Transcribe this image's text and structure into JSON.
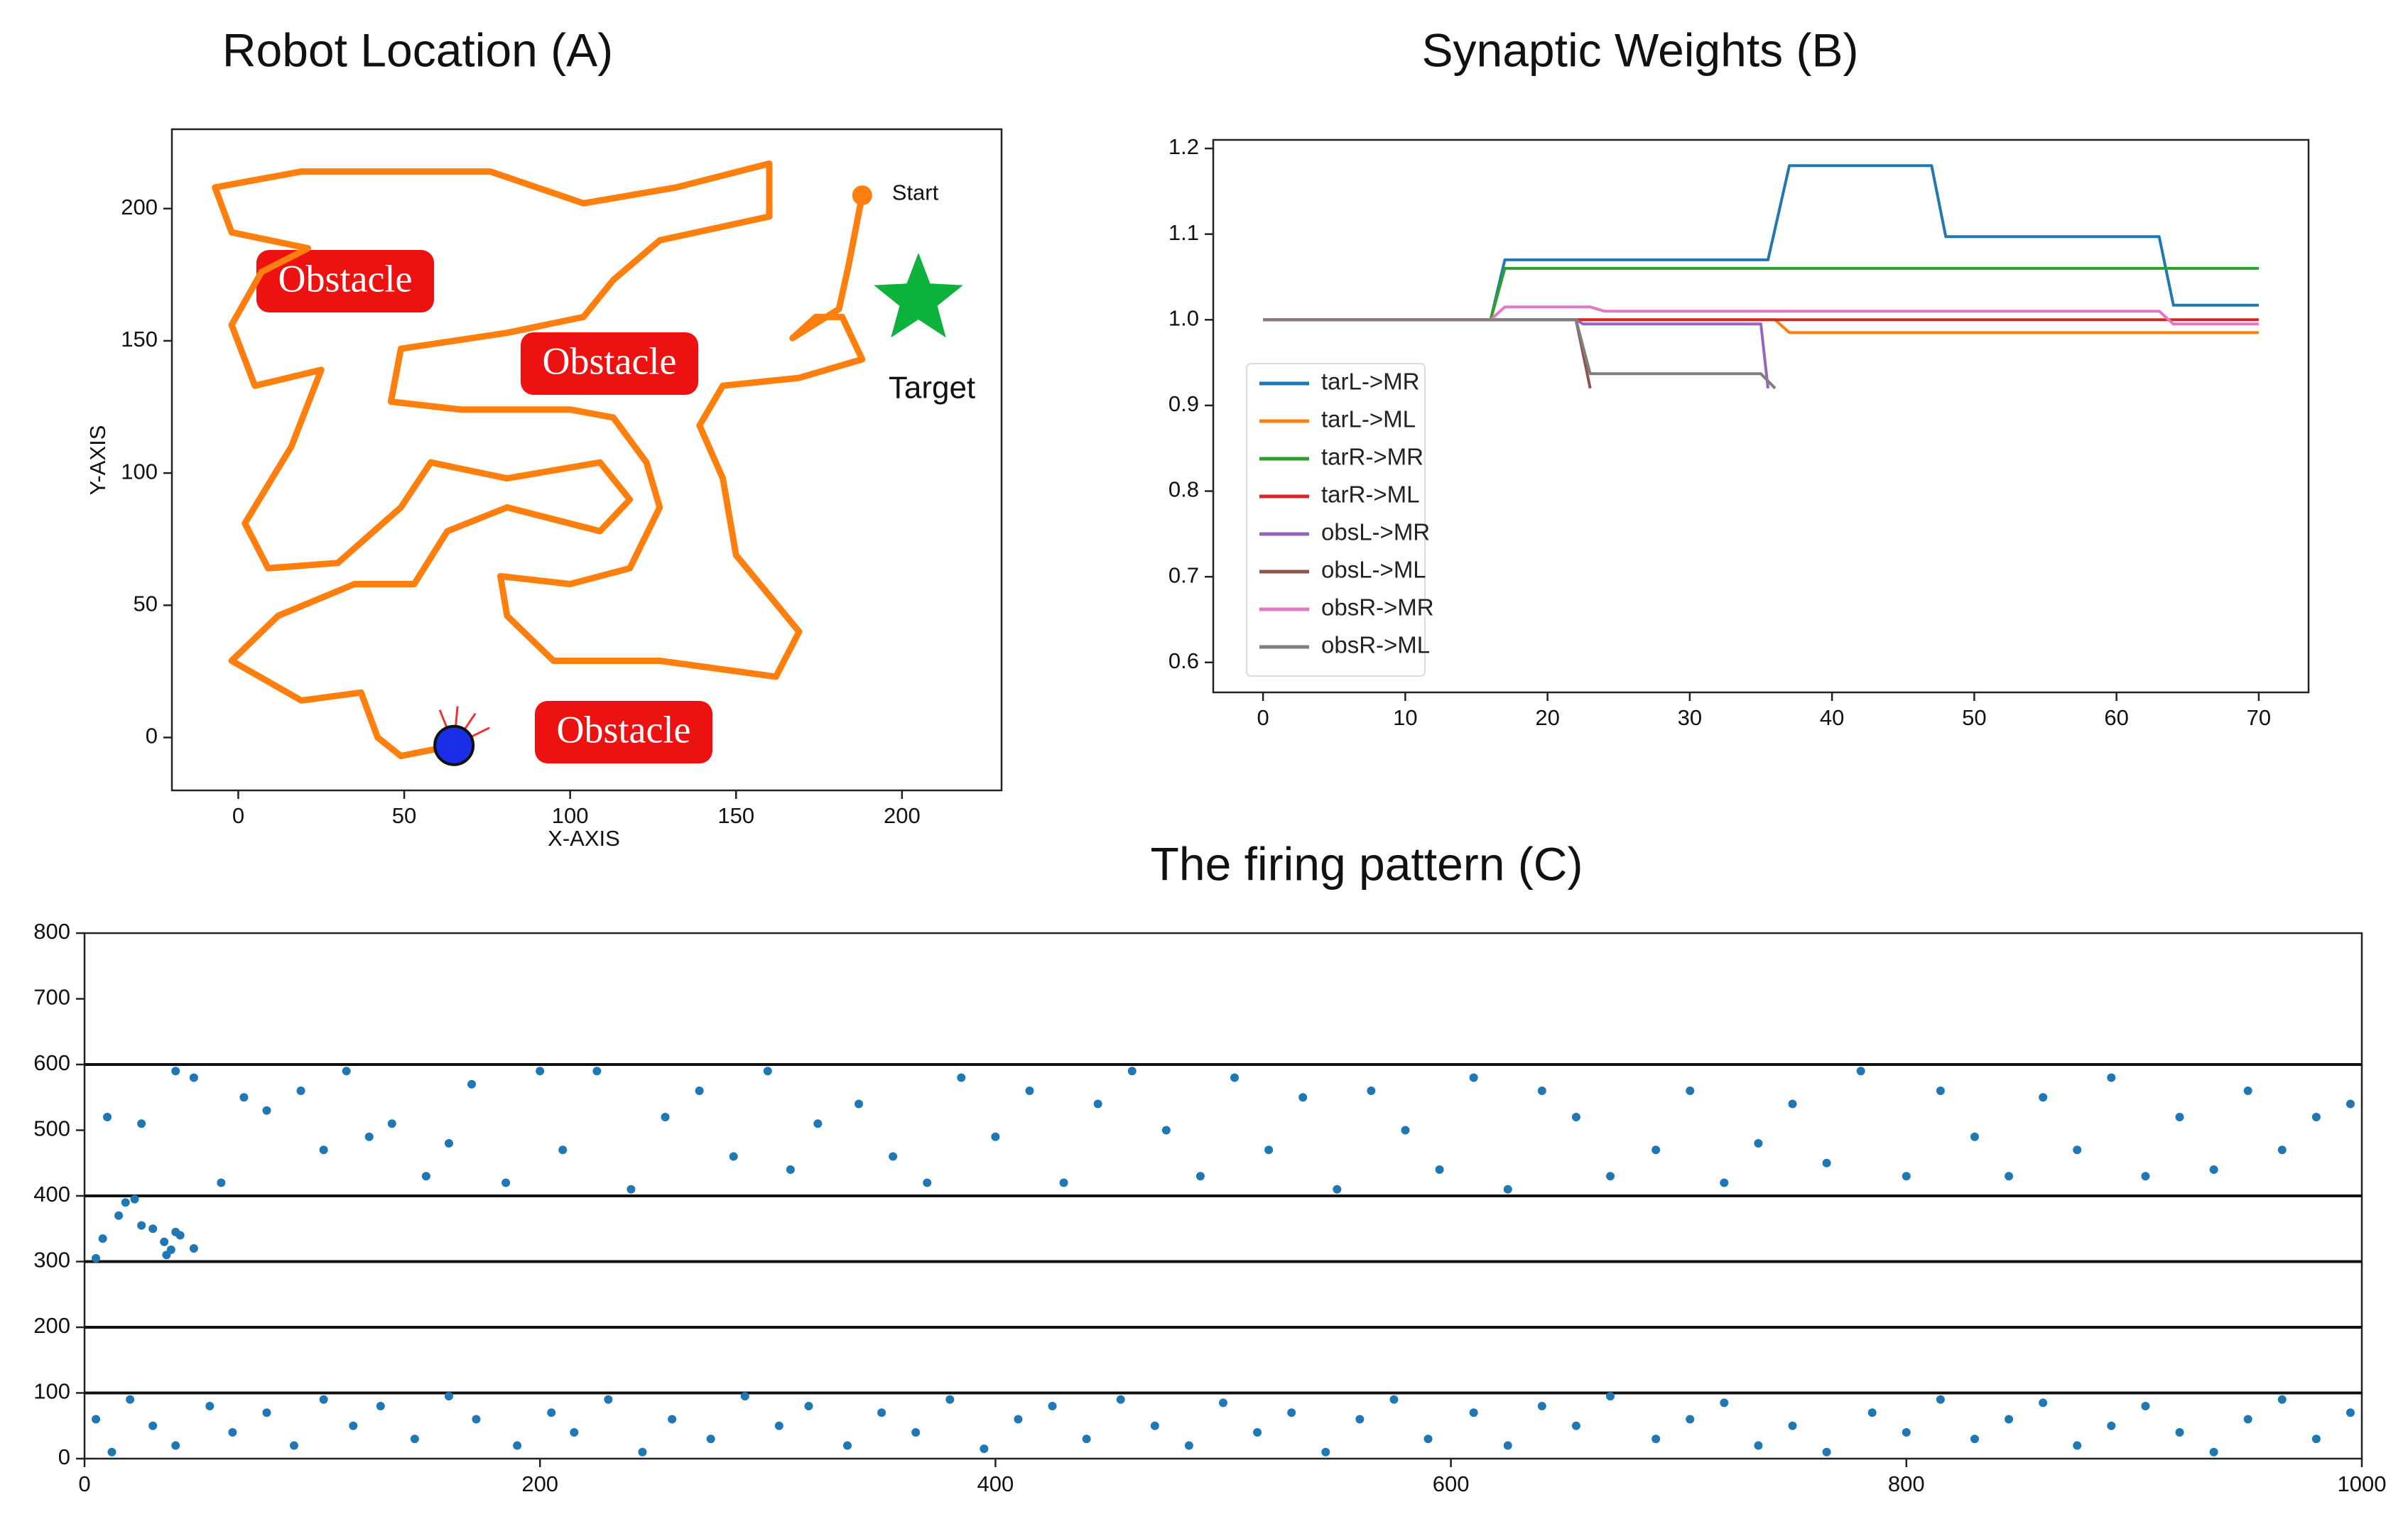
{
  "chart_data": [
    {
      "type": "line",
      "title": "Robot Location (A)",
      "x_label": "X-AXIS",
      "y_label": "Y-AXIS",
      "start_label": "Start",
      "target_label": "Target",
      "obstacles": [
        "Obstacle",
        "Obstacle",
        "Obstacle"
      ],
      "color": "#ff7f0e",
      "x": [
        188,
        184,
        181,
        167,
        174,
        182,
        188,
        169,
        146,
        139,
        146,
        150,
        169,
        162,
        127,
        95,
        81,
        79,
        100,
        118,
        127,
        123,
        113,
        100,
        67,
        46,
        49,
        81,
        104,
        113,
        127,
        160,
        160,
        132,
        104,
        76,
        44,
        19,
        -7,
        -2,
        21,
        7,
        -2,
        5,
        25,
        16,
        2,
        9,
        30,
        49,
        58,
        81,
        109,
        118,
        109,
        81,
        63,
        53,
        35,
        12,
        -2,
        19,
        37,
        42,
        49,
        65
      ],
      "values": [
        205,
        179,
        162,
        151,
        159,
        159,
        143,
        136,
        133,
        118,
        98,
        69,
        40,
        23,
        29,
        29,
        46,
        61,
        58,
        64,
        87,
        104,
        121,
        124,
        124,
        127,
        147,
        153,
        159,
        173,
        188,
        197,
        217,
        208,
        202,
        214,
        214,
        214,
        208,
        191,
        185,
        176,
        156,
        133,
        139,
        110,
        81,
        64,
        66,
        87,
        104,
        98,
        104,
        90,
        78,
        87,
        78,
        58,
        58,
        46,
        29,
        14,
        17,
        0,
        -7,
        -3
      ],
      "xlim": [
        -20,
        230
      ],
      "ylim": [
        -20,
        230
      ],
      "xticks": [
        0,
        50,
        100,
        150,
        200
      ],
      "yticks": [
        0,
        50,
        100,
        150,
        200
      ]
    },
    {
      "type": "line",
      "title": "Synaptic Weights (B)",
      "xlim": [
        -3.5,
        73.5
      ],
      "ylim": [
        0.565,
        1.21
      ],
      "xticks": [
        0,
        10,
        20,
        30,
        40,
        50,
        60,
        70
      ],
      "yticks": [
        0.6,
        0.7,
        0.8,
        0.9,
        {
          "value": 1,
          "label": "1.0"
        },
        1.1,
        1.2
      ],
      "legend": "lower left",
      "series": [
        {
          "name": "tarL->MR",
          "color": "#1f77b4",
          "x": [
            0,
            16,
            17,
            35.5,
            37,
            47,
            48,
            63,
            64,
            70
          ],
          "values": [
            1.0,
            1.0,
            1.07,
            1.07,
            1.18,
            1.18,
            1.097,
            1.097,
            1.017,
            1.017
          ]
        },
        {
          "name": "tarL->ML",
          "color": "#ff7f0e",
          "x": [
            0,
            36,
            37,
            70
          ],
          "values": [
            1.0,
            1.0,
            0.985,
            0.985
          ]
        },
        {
          "name": "tarR->MR",
          "color": "#2ca02c",
          "x": [
            0,
            16,
            17,
            70
          ],
          "values": [
            1.0,
            1.0,
            1.06,
            1.06
          ]
        },
        {
          "name": "tarR->ML",
          "color": "#d62728",
          "x": [
            0,
            70
          ],
          "values": [
            1.0,
            1.0
          ]
        },
        {
          "name": "obsL->MR",
          "color": "#9467bd",
          "x": [
            0,
            22,
            22.5,
            35,
            35.5
          ],
          "values": [
            1.0,
            1.0,
            0.995,
            0.995,
            0.92
          ]
        },
        {
          "name": "obsL->ML",
          "color": "#8c564b",
          "x": [
            0,
            22,
            23
          ],
          "values": [
            1.0,
            1.0,
            0.92
          ]
        },
        {
          "name": "obsR->MR",
          "color": "#e377c2",
          "x": [
            0,
            16,
            17,
            23,
            24,
            63,
            64,
            70
          ],
          "values": [
            1.0,
            1.0,
            1.015,
            1.015,
            1.01,
            1.01,
            0.995,
            0.995
          ]
        },
        {
          "name": "obsR->ML",
          "color": "#7f7f7f",
          "x": [
            0,
            22,
            23,
            35,
            36
          ],
          "values": [
            1.0,
            1.0,
            0.937,
            0.937,
            0.92
          ]
        }
      ]
    },
    {
      "type": "scatter",
      "title": "The firing pattern (C)",
      "color": "#1f77b4",
      "xlim": [
        0,
        1000
      ],
      "ylim": [
        0,
        800
      ],
      "xticks": [
        0,
        200,
        400,
        600,
        800,
        1000
      ],
      "yticks": [
        0,
        100,
        200,
        300,
        400,
        500,
        600,
        700,
        800
      ],
      "hlines": [
        100,
        200,
        300,
        400,
        600
      ],
      "x": [
        5,
        8,
        15,
        18,
        22,
        25,
        30,
        35,
        40,
        36,
        42,
        48,
        38,
        10,
        25,
        40,
        48,
        60,
        70,
        80,
        95,
        105,
        115,
        125,
        135,
        150,
        160,
        170,
        185,
        200,
        210,
        225,
        240,
        255,
        270,
        285,
        300,
        310,
        322,
        340,
        355,
        370,
        385,
        400,
        415,
        430,
        445,
        460,
        475,
        490,
        505,
        520,
        535,
        550,
        565,
        580,
        595,
        610,
        625,
        640,
        655,
        670,
        690,
        705,
        720,
        735,
        750,
        765,
        780,
        800,
        815,
        830,
        845,
        860,
        875,
        890,
        905,
        920,
        935,
        950,
        965,
        980,
        995,
        5,
        12,
        20,
        30,
        40,
        55,
        65,
        80,
        92,
        105,
        118,
        130,
        145,
        160,
        172,
        190,
        205,
        215,
        230,
        245,
        258,
        275,
        290,
        305,
        318,
        335,
        350,
        365,
        380,
        395,
        410,
        425,
        440,
        455,
        470,
        485,
        500,
        515,
        530,
        545,
        560,
        575,
        590,
        610,
        625,
        640,
        655,
        670,
        690,
        705,
        720,
        735,
        750,
        765,
        785,
        800,
        815,
        830,
        845,
        860,
        875,
        890,
        905,
        920,
        935,
        950,
        965,
        980,
        995
      ],
      "values": [
        305,
        335,
        370,
        390,
        395,
        355,
        350,
        330,
        345,
        310,
        340,
        320,
        318,
        520,
        510,
        590,
        580,
        420,
        550,
        530,
        560,
        470,
        590,
        490,
        510,
        430,
        480,
        570,
        420,
        590,
        470,
        590,
        410,
        520,
        560,
        460,
        590,
        440,
        510,
        540,
        460,
        420,
        580,
        490,
        560,
        420,
        540,
        590,
        500,
        430,
        580,
        470,
        550,
        410,
        560,
        500,
        440,
        580,
        410,
        560,
        520,
        430,
        470,
        560,
        420,
        480,
        540,
        450,
        590,
        430,
        560,
        490,
        430,
        550,
        470,
        580,
        430,
        520,
        440,
        560,
        470,
        520,
        540,
        60,
        10,
        90,
        50,
        20,
        80,
        40,
        70,
        20,
        90,
        50,
        80,
        30,
        95,
        60,
        20,
        70,
        40,
        90,
        10,
        60,
        30,
        95,
        50,
        80,
        20,
        70,
        40,
        90,
        15,
        60,
        80,
        30,
        90,
        50,
        20,
        85,
        40,
        70,
        10,
        60,
        90,
        30,
        70,
        20,
        80,
        50,
        95,
        30,
        60,
        85,
        20,
        50,
        10,
        70,
        40,
        90,
        30,
        60,
        85,
        20,
        50,
        80,
        40,
        10,
        60,
        90,
        30,
        70
      ]
    }
  ]
}
